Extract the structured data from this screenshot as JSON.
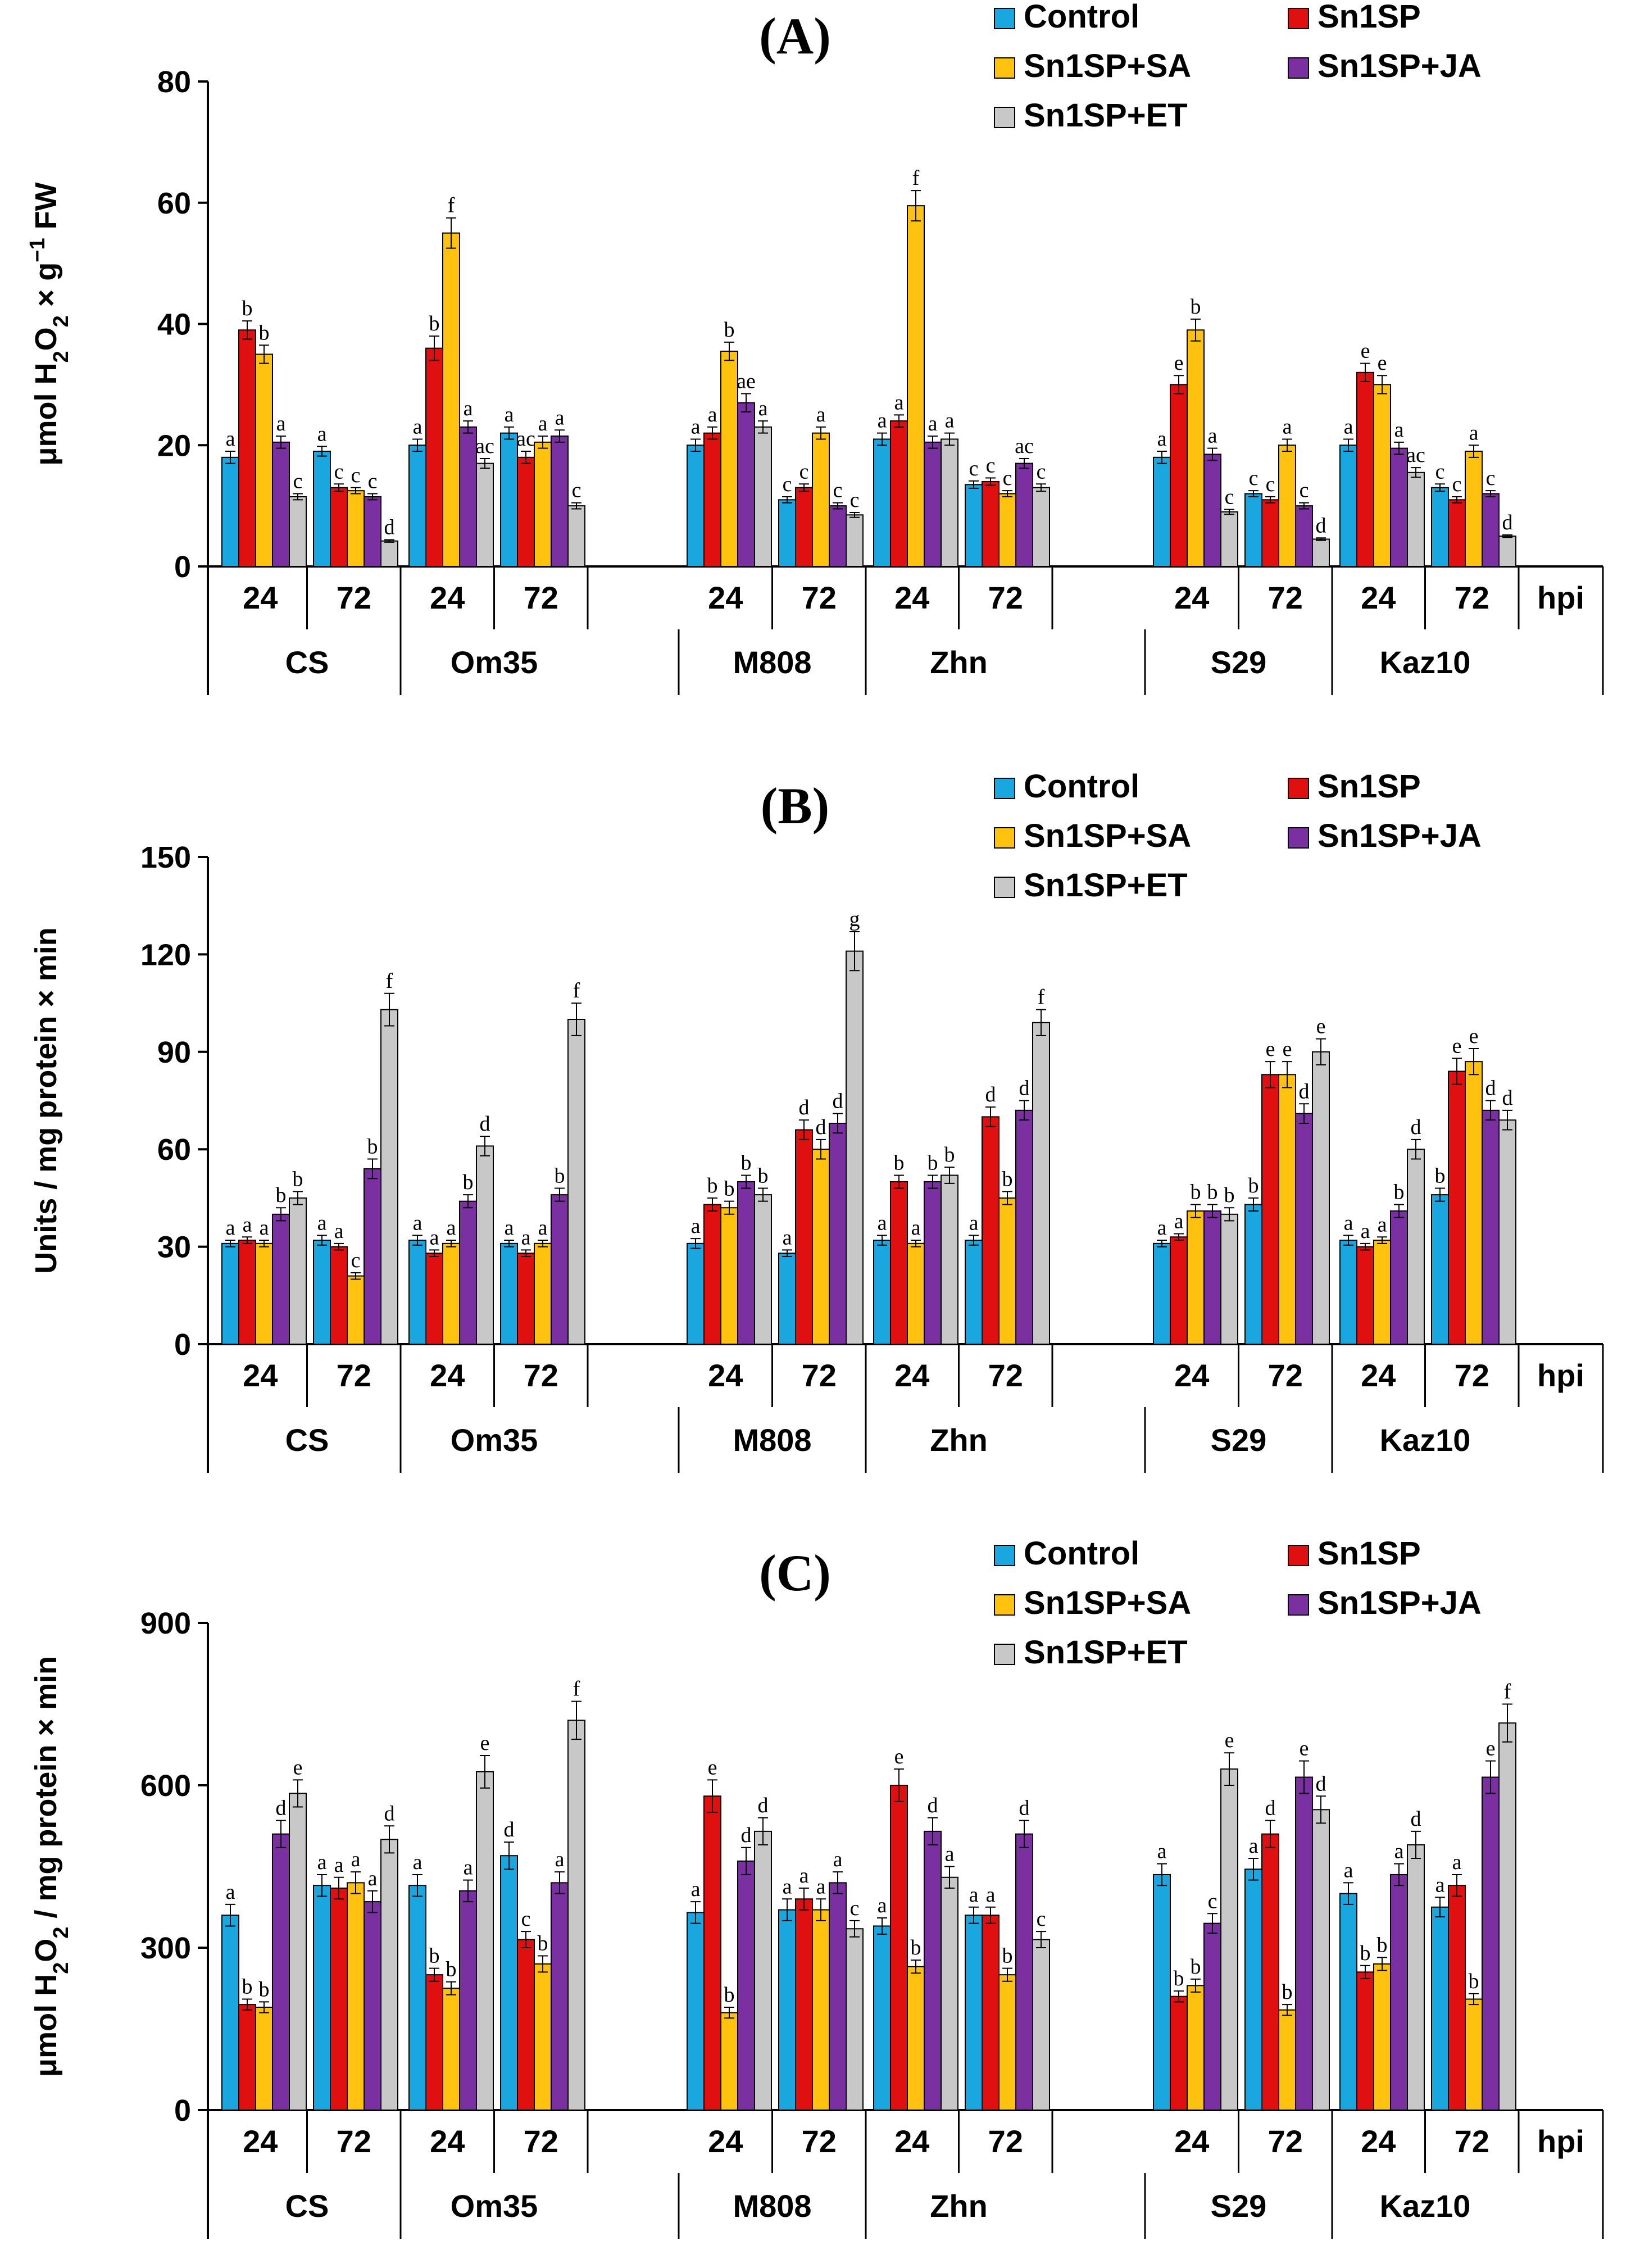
{
  "colors": {
    "Control": "#1aa7e0",
    "Sn1SP": "#e01010",
    "Sn1SP+SA": "#ffc20e",
    "Sn1SP+JA": "#7a30a0",
    "Sn1SP+ET": "#c8c8c8"
  },
  "chart_data": [
    {
      "panel": "(A)",
      "type": "bar",
      "title": "(A)",
      "ylabel_parts": [
        "μmol H",
        "2",
        "O",
        "2",
        " × g",
        "−1",
        " FW"
      ],
      "ylim": [
        0,
        80
      ],
      "yticks": [
        0,
        20,
        40,
        60,
        80
      ],
      "series_names": [
        "Control",
        "Sn1SP",
        "Sn1SP+SA",
        "Sn1SP+JA",
        "Sn1SP+ET"
      ],
      "cultivars": [
        "CS",
        "Om35",
        "M808",
        "Zhn",
        "S29",
        "Kaz10"
      ],
      "time_labels": [
        "24",
        "72"
      ],
      "unit_label": "hpi",
      "groups": [
        {
          "cultivar": "CS",
          "time": "24",
          "values": [
            18,
            39,
            35,
            20.5,
            11.5
          ],
          "errors": [
            1,
            1.5,
            1.5,
            1,
            0.5
          ],
          "letters": [
            "a",
            "b",
            "b",
            "a",
            "c"
          ]
        },
        {
          "cultivar": "CS",
          "time": "72",
          "values": [
            19,
            13,
            12.5,
            11.5,
            4.2
          ],
          "errors": [
            0.8,
            0.6,
            0.5,
            0.5,
            0.2
          ],
          "letters": [
            "a",
            "c",
            "c",
            "c",
            "d"
          ]
        },
        {
          "cultivar": "Om35",
          "time": "24",
          "values": [
            20,
            36,
            55,
            23,
            17
          ],
          "errors": [
            1,
            2,
            2.5,
            1,
            0.8
          ],
          "letters": [
            "a",
            "b",
            "f",
            "a",
            "ac"
          ]
        },
        {
          "cultivar": "Om35",
          "time": "72",
          "values": [
            22,
            18,
            20.5,
            21.5,
            10
          ],
          "errors": [
            1,
            1,
            1,
            1,
            0.5
          ],
          "letters": [
            "a",
            "ac",
            "a",
            "a",
            "c"
          ]
        },
        {
          "cultivar": "M808",
          "time": "24",
          "values": [
            20,
            22,
            35.5,
            27,
            23
          ],
          "errors": [
            1,
            1,
            1.5,
            1.5,
            1
          ],
          "letters": [
            "a",
            "a",
            "b",
            "ae",
            "a"
          ]
        },
        {
          "cultivar": "M808",
          "time": "72",
          "values": [
            11,
            13,
            22,
            10,
            8.5
          ],
          "errors": [
            0.5,
            0.6,
            1,
            0.5,
            0.4
          ],
          "letters": [
            "c",
            "c",
            "a",
            "c",
            "c"
          ]
        },
        {
          "cultivar": "Zhn",
          "time": "24",
          "values": [
            21,
            24,
            59.5,
            20.5,
            21
          ],
          "errors": [
            1,
            1,
            2.5,
            1,
            1
          ],
          "letters": [
            "a",
            "a",
            "f",
            "a",
            "a"
          ]
        },
        {
          "cultivar": "Zhn",
          "time": "72",
          "values": [
            13.5,
            14,
            12,
            17,
            13
          ],
          "errors": [
            0.6,
            0.6,
            0.5,
            0.8,
            0.6
          ],
          "letters": [
            "c",
            "c",
            "c",
            "ac",
            "c"
          ]
        },
        {
          "cultivar": "S29",
          "time": "24",
          "values": [
            18,
            30,
            39,
            18.5,
            9
          ],
          "errors": [
            1,
            1.5,
            1.8,
            1,
            0.4
          ],
          "letters": [
            "a",
            "e",
            "b",
            "a",
            "c"
          ]
        },
        {
          "cultivar": "S29",
          "time": "72",
          "values": [
            12,
            11,
            20,
            10,
            4.5
          ],
          "errors": [
            0.5,
            0.5,
            1,
            0.5,
            0.2
          ],
          "letters": [
            "c",
            "c",
            "a",
            "c",
            "d"
          ]
        },
        {
          "cultivar": "Kaz10",
          "time": "24",
          "values": [
            20,
            32,
            30,
            19.5,
            15.5
          ],
          "errors": [
            1,
            1.5,
            1.5,
            1,
            0.8
          ],
          "letters": [
            "a",
            "e",
            "e",
            "a",
            "ac"
          ]
        },
        {
          "cultivar": "Kaz10",
          "time": "72",
          "values": [
            13,
            11,
            19,
            12,
            5
          ],
          "errors": [
            0.6,
            0.5,
            1,
            0.5,
            0.2
          ],
          "letters": [
            "c",
            "c",
            "a",
            "c",
            "d"
          ]
        }
      ]
    },
    {
      "panel": "(B)",
      "type": "bar",
      "title": "(B)",
      "ylabel_parts": [
        "Units / mg protein × min"
      ],
      "ylim": [
        0,
        150
      ],
      "yticks": [
        0,
        30,
        60,
        90,
        120,
        150
      ],
      "series_names": [
        "Control",
        "Sn1SP",
        "Sn1SP+SA",
        "Sn1SP+JA",
        "Sn1SP+ET"
      ],
      "cultivars": [
        "CS",
        "Om35",
        "M808",
        "Zhn",
        "S29",
        "Kaz10"
      ],
      "time_labels": [
        "24",
        "72"
      ],
      "unit_label": "hpi",
      "groups": [
        {
          "cultivar": "CS",
          "time": "24",
          "values": [
            31,
            32,
            31,
            40,
            45
          ],
          "errors": [
            1,
            1,
            1,
            2,
            2
          ],
          "letters": [
            "a",
            "a",
            "a",
            "b",
            "b"
          ]
        },
        {
          "cultivar": "CS",
          "time": "72",
          "values": [
            32,
            30,
            21,
            54,
            103
          ],
          "errors": [
            1.5,
            1,
            1,
            3,
            5
          ],
          "letters": [
            "a",
            "a",
            "c",
            "b",
            "f"
          ]
        },
        {
          "cultivar": "Om35",
          "time": "24",
          "values": [
            32,
            28,
            31,
            44,
            61
          ],
          "errors": [
            1.5,
            1,
            1,
            2,
            3
          ],
          "letters": [
            "a",
            "a",
            "a",
            "b",
            "d"
          ]
        },
        {
          "cultivar": "Om35",
          "time": "72",
          "values": [
            31,
            28,
            31,
            46,
            100
          ],
          "errors": [
            1,
            1,
            1,
            2,
            5
          ],
          "letters": [
            "a",
            "a",
            "a",
            "b",
            "f"
          ]
        },
        {
          "cultivar": "M808",
          "time": "24",
          "values": [
            31,
            43,
            42,
            50,
            46
          ],
          "errors": [
            1.5,
            2,
            2,
            2,
            2
          ],
          "letters": [
            "a",
            "b",
            "b",
            "b",
            "b"
          ]
        },
        {
          "cultivar": "M808",
          "time": "72",
          "values": [
            28,
            66,
            60,
            68,
            121
          ],
          "errors": [
            1,
            3,
            3,
            3,
            6
          ],
          "letters": [
            "a",
            "d",
            "d",
            "d",
            "g"
          ]
        },
        {
          "cultivar": "Zhn",
          "time": "24",
          "values": [
            32,
            50,
            31,
            50,
            52
          ],
          "errors": [
            1.5,
            2,
            1,
            2,
            2.5
          ],
          "letters": [
            "a",
            "b",
            "a",
            "b",
            "b"
          ]
        },
        {
          "cultivar": "Zhn",
          "time": "72",
          "values": [
            32,
            70,
            45,
            72,
            99
          ],
          "errors": [
            1.5,
            3,
            2,
            3,
            4
          ],
          "letters": [
            "a",
            "d",
            "b",
            "d",
            "f"
          ]
        },
        {
          "cultivar": "S29",
          "time": "24",
          "values": [
            31,
            33,
            41,
            41,
            40
          ],
          "errors": [
            1,
            1,
            2,
            2,
            2
          ],
          "letters": [
            "a",
            "a",
            "b",
            "b",
            "b"
          ]
        },
        {
          "cultivar": "S29",
          "time": "72",
          "values": [
            43,
            83,
            83,
            71,
            90
          ],
          "errors": [
            2,
            4,
            4,
            3,
            4
          ],
          "letters": [
            "b",
            "e",
            "e",
            "d",
            "e"
          ]
        },
        {
          "cultivar": "Kaz10",
          "time": "24",
          "values": [
            32,
            30,
            32,
            41,
            60
          ],
          "errors": [
            1.5,
            1,
            1,
            2,
            3
          ],
          "letters": [
            "a",
            "a",
            "a",
            "b",
            "d"
          ]
        },
        {
          "cultivar": "Kaz10",
          "time": "72",
          "values": [
            46,
            84,
            87,
            72,
            69
          ],
          "errors": [
            2,
            4,
            4,
            3,
            3
          ],
          "letters": [
            "b",
            "e",
            "e",
            "d",
            "d"
          ]
        }
      ]
    },
    {
      "panel": "(C)",
      "type": "bar",
      "title": "(C)",
      "ylabel_parts": [
        "μmol H",
        "2",
        "O",
        "2",
        " / mg protein × min"
      ],
      "ylim": [
        0,
        900
      ],
      "yticks": [
        0,
        300,
        600,
        900
      ],
      "series_names": [
        "Control",
        "Sn1SP",
        "Sn1SP+SA",
        "Sn1SP+JA",
        "Sn1SP+ET"
      ],
      "cultivars": [
        "CS",
        "Om35",
        "M808",
        "Zhn",
        "S29",
        "Kaz10"
      ],
      "time_labels": [
        "24",
        "72"
      ],
      "unit_label": "hpi",
      "groups": [
        {
          "cultivar": "CS",
          "time": "24",
          "values": [
            360,
            195,
            190,
            510,
            585
          ],
          "errors": [
            20,
            10,
            10,
            25,
            25
          ],
          "letters": [
            "a",
            "b",
            "b",
            "d",
            "e"
          ]
        },
        {
          "cultivar": "CS",
          "time": "72",
          "values": [
            415,
            410,
            420,
            385,
            500
          ],
          "errors": [
            20,
            20,
            20,
            20,
            25
          ],
          "letters": [
            "a",
            "a",
            "a",
            "a",
            "d"
          ]
        },
        {
          "cultivar": "Om35",
          "time": "24",
          "values": [
            415,
            250,
            225,
            405,
            625
          ],
          "errors": [
            20,
            12,
            12,
            20,
            30
          ],
          "letters": [
            "a",
            "b",
            "b",
            "a",
            "e"
          ]
        },
        {
          "cultivar": "Om35",
          "time": "72",
          "values": [
            470,
            315,
            270,
            420,
            720
          ],
          "errors": [
            25,
            15,
            15,
            20,
            35
          ],
          "letters": [
            "d",
            "c",
            "b",
            "a",
            "f"
          ]
        },
        {
          "cultivar": "M808",
          "time": "24",
          "values": [
            365,
            580,
            180,
            460,
            515
          ],
          "errors": [
            20,
            30,
            10,
            25,
            25
          ],
          "letters": [
            "a",
            "e",
            "b",
            "d",
            "d"
          ]
        },
        {
          "cultivar": "M808",
          "time": "72",
          "values": [
            370,
            390,
            370,
            420,
            335
          ],
          "errors": [
            20,
            20,
            20,
            20,
            15
          ],
          "letters": [
            "a",
            "a",
            "a",
            "a",
            "c"
          ]
        },
        {
          "cultivar": "Zhn",
          "time": "24",
          "values": [
            340,
            600,
            265,
            515,
            430
          ],
          "errors": [
            15,
            30,
            12,
            25,
            20
          ],
          "letters": [
            "a",
            "e",
            "b",
            "d",
            "a"
          ]
        },
        {
          "cultivar": "Zhn",
          "time": "72",
          "values": [
            360,
            360,
            250,
            510,
            315
          ],
          "errors": [
            15,
            15,
            12,
            25,
            15
          ],
          "letters": [
            "a",
            "a",
            "b",
            "d",
            "c"
          ]
        },
        {
          "cultivar": "S29",
          "time": "24",
          "values": [
            435,
            210,
            230,
            345,
            630
          ],
          "errors": [
            20,
            10,
            12,
            18,
            30
          ],
          "letters": [
            "a",
            "b",
            "b",
            "c",
            "e"
          ]
        },
        {
          "cultivar": "S29",
          "time": "72",
          "values": [
            445,
            510,
            185,
            615,
            555
          ],
          "errors": [
            20,
            25,
            10,
            30,
            25
          ],
          "letters": [
            "a",
            "d",
            "b",
            "e",
            "d"
          ]
        },
        {
          "cultivar": "Kaz10",
          "time": "24",
          "values": [
            400,
            255,
            270,
            435,
            490
          ],
          "errors": [
            20,
            12,
            12,
            20,
            25
          ],
          "letters": [
            "a",
            "b",
            "b",
            "a",
            "d"
          ]
        },
        {
          "cultivar": "Kaz10",
          "time": "72",
          "values": [
            375,
            415,
            205,
            615,
            715
          ],
          "errors": [
            18,
            20,
            10,
            30,
            35
          ],
          "letters": [
            "a",
            "a",
            "b",
            "e",
            "f"
          ]
        }
      ]
    }
  ]
}
